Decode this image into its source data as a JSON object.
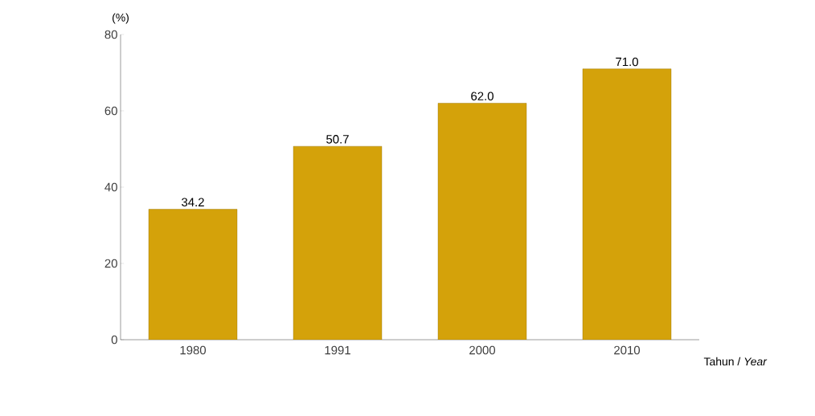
{
  "chart_data": {
    "type": "bar",
    "ylabel": "(%)",
    "xlabel": "Tahun / *Year*",
    "categories": [
      "1980",
      "1991",
      "2000",
      "2010"
    ],
    "values": [
      34.2,
      50.7,
      62.0,
      71.0
    ],
    "value_labels": [
      "34.2",
      "50.7",
      "62.0",
      "71.0"
    ],
    "color": "#d4a20a",
    "ylim": [
      0,
      80
    ],
    "yticks": [
      0,
      20,
      40,
      60,
      80
    ],
    "grid": false
  }
}
